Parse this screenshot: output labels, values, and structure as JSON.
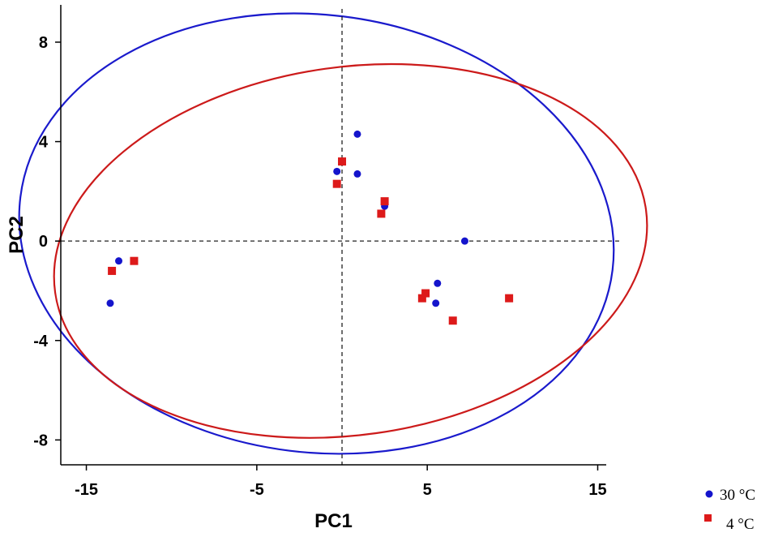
{
  "chart_data": {
    "type": "scatter",
    "title": "",
    "xlabel": "PC1",
    "ylabel": "PC2",
    "xlim": [
      -16.5,
      15.5
    ],
    "ylim": [
      -9,
      9.5
    ],
    "xticks": [
      -15,
      -5,
      5,
      15
    ],
    "yticks": [
      -8,
      -4,
      0,
      4,
      8
    ],
    "grid": false,
    "reference_lines": {
      "x": 0,
      "y": 0,
      "style": "dashed"
    },
    "legend_placement": "bottom-right",
    "series": [
      {
        "name": "30 °C",
        "marker": "circle",
        "color": "#1414cc",
        "points": [
          [
            0.9,
            4.3
          ],
          [
            -0.3,
            2.8
          ],
          [
            0.9,
            2.7
          ],
          [
            2.5,
            1.4
          ],
          [
            7.2,
            0.0
          ],
          [
            -13.1,
            -0.8
          ],
          [
            -13.6,
            -2.5
          ],
          [
            5.6,
            -1.7
          ],
          [
            5.5,
            -2.5
          ]
        ]
      },
      {
        "name": "4 °C",
        "marker": "square",
        "color": "#dd1a1a",
        "points": [
          [
            0.0,
            3.2
          ],
          [
            -0.3,
            2.3
          ],
          [
            2.5,
            1.6
          ],
          [
            2.3,
            1.1
          ],
          [
            -12.2,
            -0.8
          ],
          [
            -13.5,
            -1.2
          ],
          [
            4.9,
            -2.1
          ],
          [
            4.7,
            -2.3
          ],
          [
            9.8,
            -2.3
          ],
          [
            6.5,
            -3.2
          ]
        ]
      }
    ],
    "ellipses": [
      {
        "series": "30 °C",
        "color": "#1a1acc",
        "center": [
          -1.5,
          0.3
        ],
        "semi_axes": [
          17.5,
          8.8
        ],
        "rotation_deg": 7
      },
      {
        "series": "4 °C",
        "color": "#cc1a1a",
        "center": [
          0.5,
          -0.4
        ],
        "semi_axes": [
          17.5,
          7.4
        ],
        "rotation_deg": -8
      }
    ]
  }
}
